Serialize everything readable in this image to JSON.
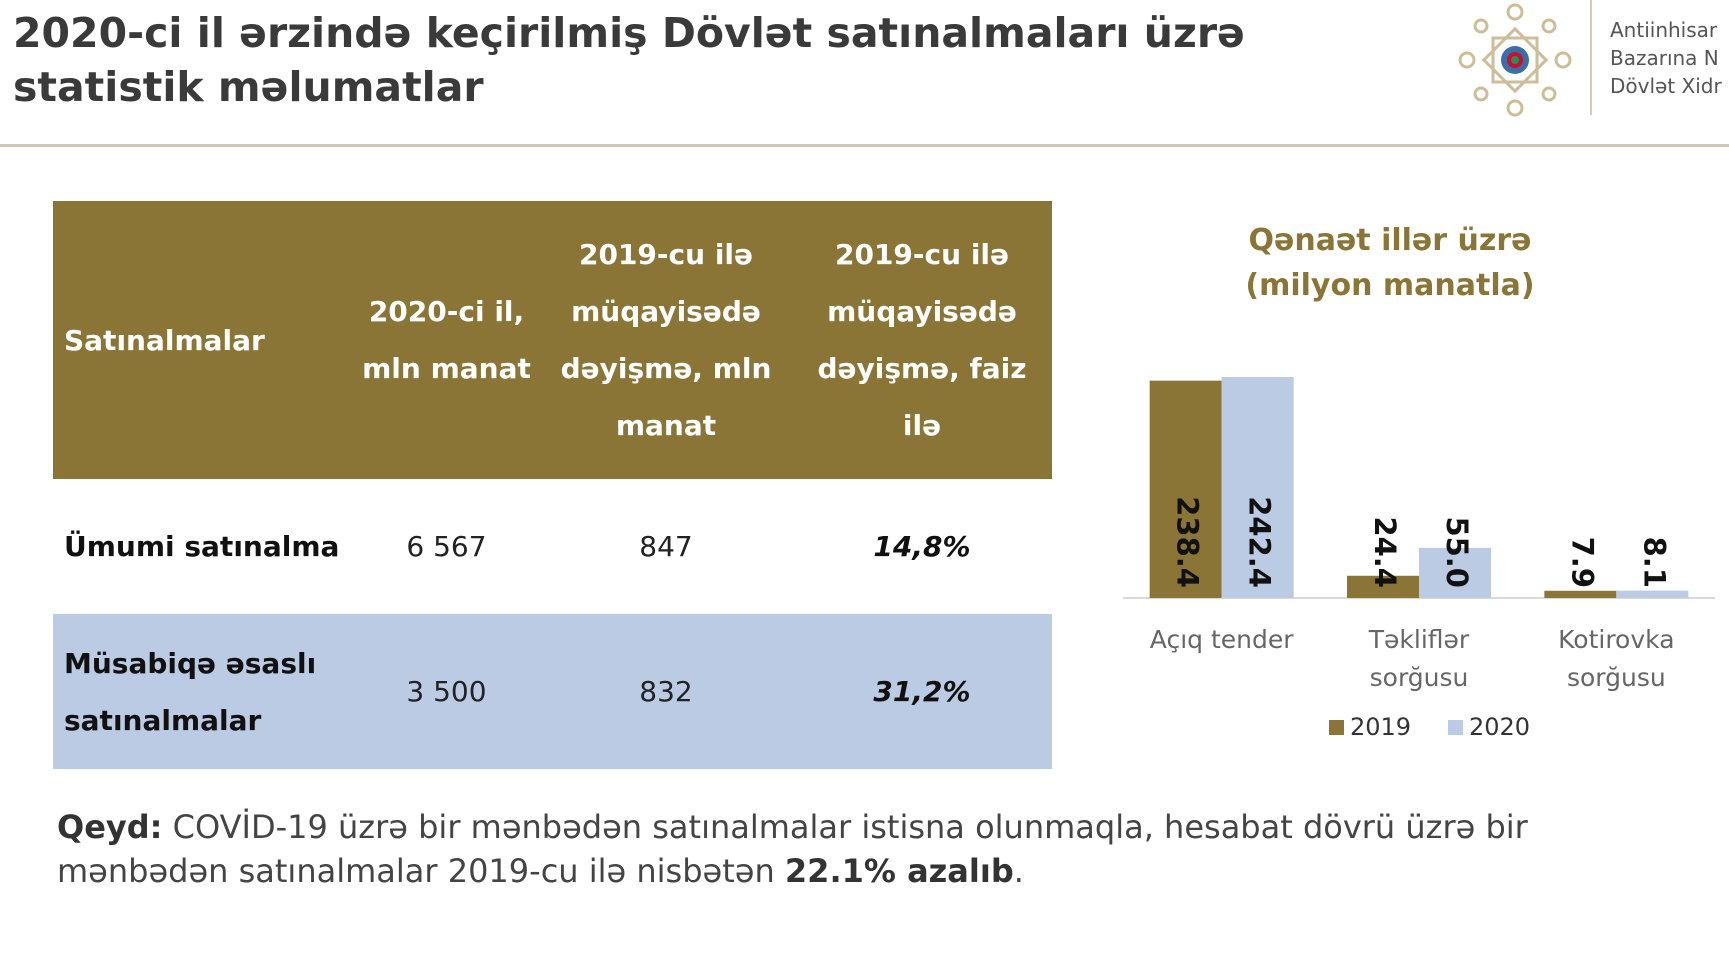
{
  "header": {
    "title": "2020-ci il ərzində keçirilmiş Dövlət satınalmaları üzrə statistik məlumatlar",
    "org_lines": [
      "Antiinhisar",
      "Bazarına N",
      "Dövlət Xidr"
    ]
  },
  "table": {
    "headers": [
      "Satınalmalar",
      "2020-ci il, mln manat",
      "2019-cu ilə müqayisədə dəyişmə, mln manat",
      "2019-cu ilə müqayisədə dəyişmə, faiz ilə"
    ],
    "rows": [
      [
        "Ümumi satınalma",
        "6 567",
        "847",
        "14,8%"
      ],
      [
        "Müsabiqə əsaslı satınalmalar",
        "3 500",
        "832",
        "31,2%"
      ]
    ]
  },
  "chart_data": {
    "type": "bar",
    "title": "Qənaət illər üzrə (milyon manatla)",
    "categories": [
      "Açıq tender",
      "Təkliflər sorğusu",
      "Kotirovka sorğusu"
    ],
    "series": [
      {
        "name": "2019",
        "color": "#8b7536",
        "values": [
          238.4,
          24.4,
          7.9
        ],
        "value_labels": [
          "238.4",
          "24.4",
          "7.9"
        ]
      },
      {
        "name": "2020",
        "color": "#bccbe4",
        "values": [
          242.4,
          55.0,
          8.1
        ],
        "value_labels": [
          "242.4",
          "55.0",
          "8.1"
        ]
      }
    ]
  },
  "note": {
    "label": "Qeyd:",
    "text": " COVİD-19 üzrə bir mənbədən satınalmalar istisna olunmaqla, hesabat dövrü üzrə bir mənbədən satınalmalar 2019-cu ilə nisbətən ",
    "emphasis": "22.1% azalıb",
    "end": "."
  }
}
